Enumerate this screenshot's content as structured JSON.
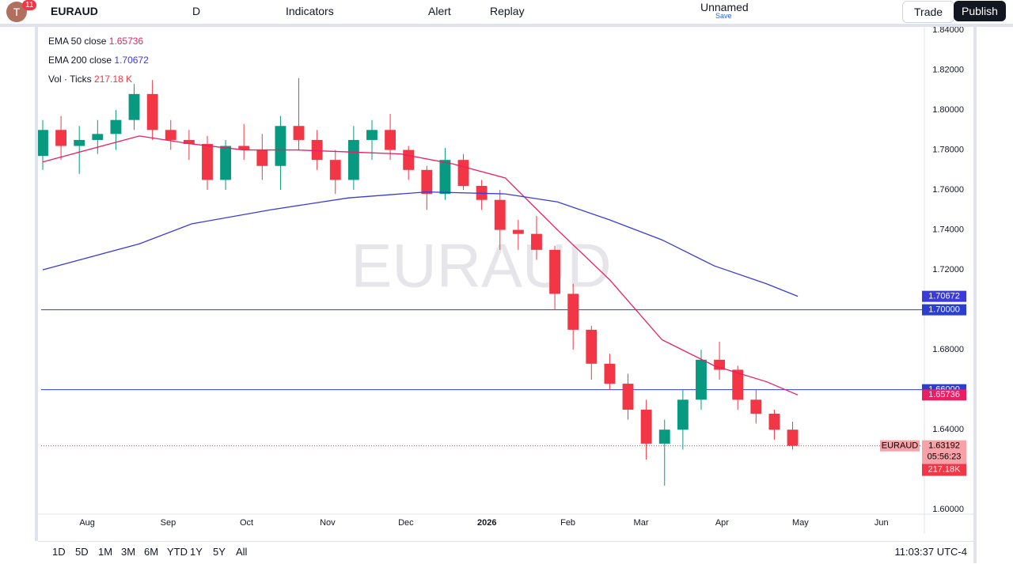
{
  "toolbar": {
    "avatar": "T",
    "badge": "11",
    "symbol": "EURAUD",
    "interval": "D",
    "indicators": "Indicators",
    "alert": "Alert",
    "replay": "Replay",
    "layout_name": "Unnamed",
    "save": "Save",
    "trade": "Trade",
    "publish": "Publish"
  },
  "legend": [
    {
      "label": "EMA 50 close",
      "value": "1.65736"
    },
    {
      "label": "EMA 200 close",
      "value": "1.70672"
    },
    {
      "label": "Vol · Ticks",
      "value": "217.18 K"
    }
  ],
  "chart_data": {
    "type": "candlestick",
    "watermark": "EURAUD",
    "x": [
      -17,
      -10,
      -3,
      4,
      11,
      18,
      25,
      32,
      39,
      46,
      53,
      60,
      67,
      74,
      81,
      88,
      95,
      102,
      109,
      116,
      123,
      130,
      137,
      144,
      151,
      158,
      165,
      172,
      179,
      186,
      193,
      200,
      207,
      214,
      221,
      228,
      235,
      242,
      249,
      256,
      263,
      270
    ],
    "open": [
      1.777,
      1.79,
      1.782,
      1.785,
      1.788,
      1.795,
      1.808,
      1.79,
      1.785,
      1.783,
      1.765,
      1.782,
      1.78,
      1.772,
      1.792,
      1.785,
      1.775,
      1.765,
      1.785,
      1.79,
      1.78,
      1.77,
      1.758,
      1.775,
      1.762,
      1.755,
      1.74,
      1.738,
      1.73,
      1.708,
      1.69,
      1.673,
      1.663,
      1.65,
      1.633,
      1.64,
      1.655,
      1.675,
      1.67,
      1.655,
      1.648,
      1.64
    ],
    "high": [
      1.795,
      1.797,
      1.792,
      1.795,
      1.8,
      1.813,
      1.815,
      1.795,
      1.79,
      1.787,
      1.785,
      1.793,
      1.788,
      1.797,
      1.816,
      1.79,
      1.78,
      1.792,
      1.795,
      1.798,
      1.782,
      1.772,
      1.781,
      1.778,
      1.765,
      1.76,
      1.745,
      1.747,
      1.732,
      1.713,
      1.692,
      1.678,
      1.668,
      1.655,
      1.645,
      1.66,
      1.68,
      1.684,
      1.672,
      1.66,
      1.65,
      1.644
    ],
    "low": [
      1.77,
      1.775,
      1.768,
      1.778,
      1.78,
      1.79,
      1.785,
      1.78,
      1.775,
      1.76,
      1.76,
      1.775,
      1.765,
      1.76,
      1.78,
      1.77,
      1.758,
      1.76,
      1.775,
      1.775,
      1.765,
      1.75,
      1.755,
      1.76,
      1.75,
      1.73,
      1.73,
      1.725,
      1.7,
      1.68,
      1.665,
      1.66,
      1.645,
      1.625,
      1.612,
      1.63,
      1.65,
      1.665,
      1.65,
      1.643,
      1.635,
      1.63
    ],
    "close": [
      1.79,
      1.782,
      1.785,
      1.788,
      1.795,
      1.808,
      1.79,
      1.785,
      1.783,
      1.765,
      1.782,
      1.78,
      1.772,
      1.792,
      1.785,
      1.775,
      1.765,
      1.785,
      1.79,
      1.78,
      1.77,
      1.758,
      1.775,
      1.762,
      1.755,
      1.74,
      1.738,
      1.73,
      1.708,
      1.69,
      1.673,
      1.663,
      1.65,
      1.633,
      1.64,
      1.655,
      1.675,
      1.67,
      1.655,
      1.648,
      1.64,
      1.63192
    ],
    "up_color": "#089981",
    "down_color": "#f23645",
    "lines": [
      {
        "name": "EMA 50",
        "color": "#e91e63",
        "x": [
          -17,
          20,
          40,
          60,
          80,
          100,
          120,
          140,
          160,
          180,
          200,
          220,
          240,
          260,
          272
        ],
        "values": [
          1.774,
          1.787,
          1.783,
          1.78,
          1.78,
          1.779,
          1.778,
          1.773,
          1.766,
          1.74,
          1.715,
          1.685,
          1.672,
          1.664,
          1.65736
        ]
      },
      {
        "name": "EMA 200",
        "color": "#3b3bd6",
        "x": [
          -17,
          20,
          40,
          70,
          100,
          130,
          160,
          180,
          200,
          220,
          240,
          260,
          272
        ],
        "values": [
          1.72,
          1.733,
          1.743,
          1.75,
          1.756,
          1.759,
          1.758,
          1.754,
          1.745,
          1.735,
          1.722,
          1.713,
          1.70672
        ]
      }
    ],
    "hlines": [
      {
        "value": 1.7,
        "label": "1.70000",
        "color": "#2c3ecf"
      },
      {
        "value": 1.66,
        "label": "1.66000",
        "color": "#2c3ecf"
      }
    ],
    "price_tags": [
      {
        "value": 1.70672,
        "label": "1.70672",
        "color": "#3b3bd6"
      },
      {
        "value": 1.65736,
        "label": "1.65736",
        "color": "#e91e63"
      }
    ],
    "last": {
      "symbol": "EURAUD",
      "price": "1.63192",
      "countdown": "05:56:23",
      "volume": "217.18K"
    },
    "xlim": [
      -17.6,
      318
    ],
    "ylim": [
      1.5985,
      1.84
    ],
    "xticks": [
      {
        "value": 0,
        "label": "Aug"
      },
      {
        "value": 31,
        "label": "Sep"
      },
      {
        "value": 61,
        "label": "Oct"
      },
      {
        "value": 92,
        "label": "Nov"
      },
      {
        "value": 122,
        "label": "Dec"
      },
      {
        "value": 153,
        "label": "2026"
      },
      {
        "value": 184,
        "label": "Feb"
      },
      {
        "value": 212,
        "label": "Mar"
      },
      {
        "value": 243,
        "label": "Apr"
      },
      {
        "value": 273,
        "label": "May"
      },
      {
        "value": 304,
        "label": "Jun"
      }
    ],
    "yticks": [
      {
        "value": 1.84,
        "label": "1.84000"
      },
      {
        "value": 1.82,
        "label": "1.82000"
      },
      {
        "value": 1.8,
        "label": "1.80000"
      },
      {
        "value": 1.78,
        "label": "1.78000"
      },
      {
        "value": 1.76,
        "label": "1.76000"
      },
      {
        "value": 1.74,
        "label": "1.74000"
      },
      {
        "value": 1.72,
        "label": "1.72000"
      },
      {
        "value": 1.68,
        "label": "1.68000"
      },
      {
        "value": 1.64,
        "label": "1.64000"
      },
      {
        "value": 1.6,
        "label": "1.60000"
      }
    ]
  },
  "ranges": [
    "1D",
    "5D",
    "1M",
    "3M",
    "6M",
    "YTD",
    "1Y",
    "5Y",
    "All"
  ],
  "clock": "11:03:37 UTC-4"
}
